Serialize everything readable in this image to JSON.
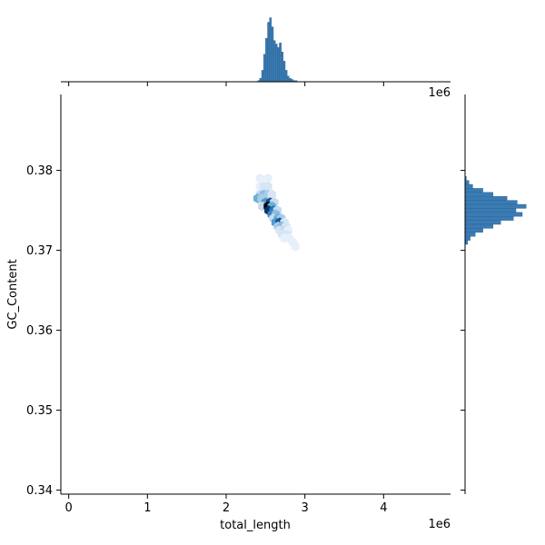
{
  "chart_data": {
    "type": "jointplot-hexbin",
    "xlabel": "total_length",
    "ylabel": "GC_Content",
    "x_offset_label": "1e6",
    "top_offset_label": "1e6",
    "x_scale": 1000000,
    "xlim": [
      -0.1,
      4.85
    ],
    "ylim": [
      0.3395,
      0.3895
    ],
    "x_ticks": [
      0,
      1,
      2,
      3,
      4
    ],
    "x_tick_labels": [
      "0",
      "1",
      "2",
      "3",
      "4"
    ],
    "y_ticks": [
      0.34,
      0.35,
      0.36,
      0.37,
      0.38
    ],
    "y_tick_labels": [
      "0.34",
      "0.35",
      "0.36",
      "0.37",
      "0.38"
    ],
    "accent_color": "#3a7bb4",
    "hex_cells": [
      {
        "x": 2.43,
        "y": 0.379,
        "count": 1
      },
      {
        "x": 2.53,
        "y": 0.379,
        "count": 1
      },
      {
        "x": 2.43,
        "y": 0.378,
        "count": 1
      },
      {
        "x": 2.48,
        "y": 0.378,
        "count": 2
      },
      {
        "x": 2.53,
        "y": 0.378,
        "count": 2
      },
      {
        "x": 2.43,
        "y": 0.377,
        "count": 3
      },
      {
        "x": 2.48,
        "y": 0.377,
        "count": 5
      },
      {
        "x": 2.53,
        "y": 0.377,
        "count": 4
      },
      {
        "x": 2.58,
        "y": 0.377,
        "count": 2
      },
      {
        "x": 2.4,
        "y": 0.3765,
        "count": 6
      },
      {
        "x": 2.45,
        "y": 0.3765,
        "count": 4
      },
      {
        "x": 2.5,
        "y": 0.376,
        "count": 7
      },
      {
        "x": 2.56,
        "y": 0.376,
        "count": 10
      },
      {
        "x": 2.61,
        "y": 0.376,
        "count": 3
      },
      {
        "x": 2.46,
        "y": 0.3755,
        "count": 3
      },
      {
        "x": 2.53,
        "y": 0.3755,
        "count": 12
      },
      {
        "x": 2.58,
        "y": 0.3755,
        "count": 6
      },
      {
        "x": 2.54,
        "y": 0.375,
        "count": 11
      },
      {
        "x": 2.6,
        "y": 0.375,
        "count": 9
      },
      {
        "x": 2.65,
        "y": 0.375,
        "count": 3
      },
      {
        "x": 2.58,
        "y": 0.3745,
        "count": 8
      },
      {
        "x": 2.63,
        "y": 0.3745,
        "count": 5
      },
      {
        "x": 2.6,
        "y": 0.374,
        "count": 3
      },
      {
        "x": 2.66,
        "y": 0.374,
        "count": 6
      },
      {
        "x": 2.7,
        "y": 0.374,
        "count": 4
      },
      {
        "x": 2.63,
        "y": 0.3735,
        "count": 7
      },
      {
        "x": 2.68,
        "y": 0.3735,
        "count": 10
      },
      {
        "x": 2.74,
        "y": 0.3735,
        "count": 2
      },
      {
        "x": 2.66,
        "y": 0.373,
        "count": 4
      },
      {
        "x": 2.71,
        "y": 0.373,
        "count": 5
      },
      {
        "x": 2.76,
        "y": 0.373,
        "count": 2
      },
      {
        "x": 2.68,
        "y": 0.3725,
        "count": 2
      },
      {
        "x": 2.74,
        "y": 0.3725,
        "count": 3
      },
      {
        "x": 2.79,
        "y": 0.3725,
        "count": 1
      },
      {
        "x": 2.71,
        "y": 0.372,
        "count": 2
      },
      {
        "x": 2.77,
        "y": 0.372,
        "count": 2
      },
      {
        "x": 2.74,
        "y": 0.3715,
        "count": 1
      },
      {
        "x": 2.8,
        "y": 0.3715,
        "count": 1
      },
      {
        "x": 2.85,
        "y": 0.371,
        "count": 1
      },
      {
        "x": 2.88,
        "y": 0.3705,
        "count": 1
      }
    ],
    "top_histogram": {
      "bins": [
        2.4,
        2.425,
        2.45,
        2.475,
        2.5,
        2.525,
        2.55,
        2.575,
        2.6,
        2.625,
        2.65,
        2.675,
        2.7,
        2.725,
        2.75,
        2.775,
        2.8,
        2.825,
        2.85,
        2.875
      ],
      "counts": [
        1,
        3,
        10,
        24,
        38,
        52,
        56,
        48,
        36,
        33,
        30,
        34,
        26,
        18,
        10,
        5,
        3,
        2,
        1,
        1
      ],
      "max_count": 58
    },
    "right_histogram": {
      "bins": [
        0.379,
        0.3785,
        0.378,
        0.3775,
        0.377,
        0.3765,
        0.376,
        0.3755,
        0.375,
        0.3745,
        0.374,
        0.3735,
        0.373,
        0.3725,
        0.372,
        0.3715,
        0.371
      ],
      "counts": [
        1,
        3,
        6,
        14,
        22,
        33,
        41,
        48,
        40,
        45,
        38,
        28,
        22,
        14,
        8,
        4,
        2
      ],
      "max_count": 50
    }
  }
}
